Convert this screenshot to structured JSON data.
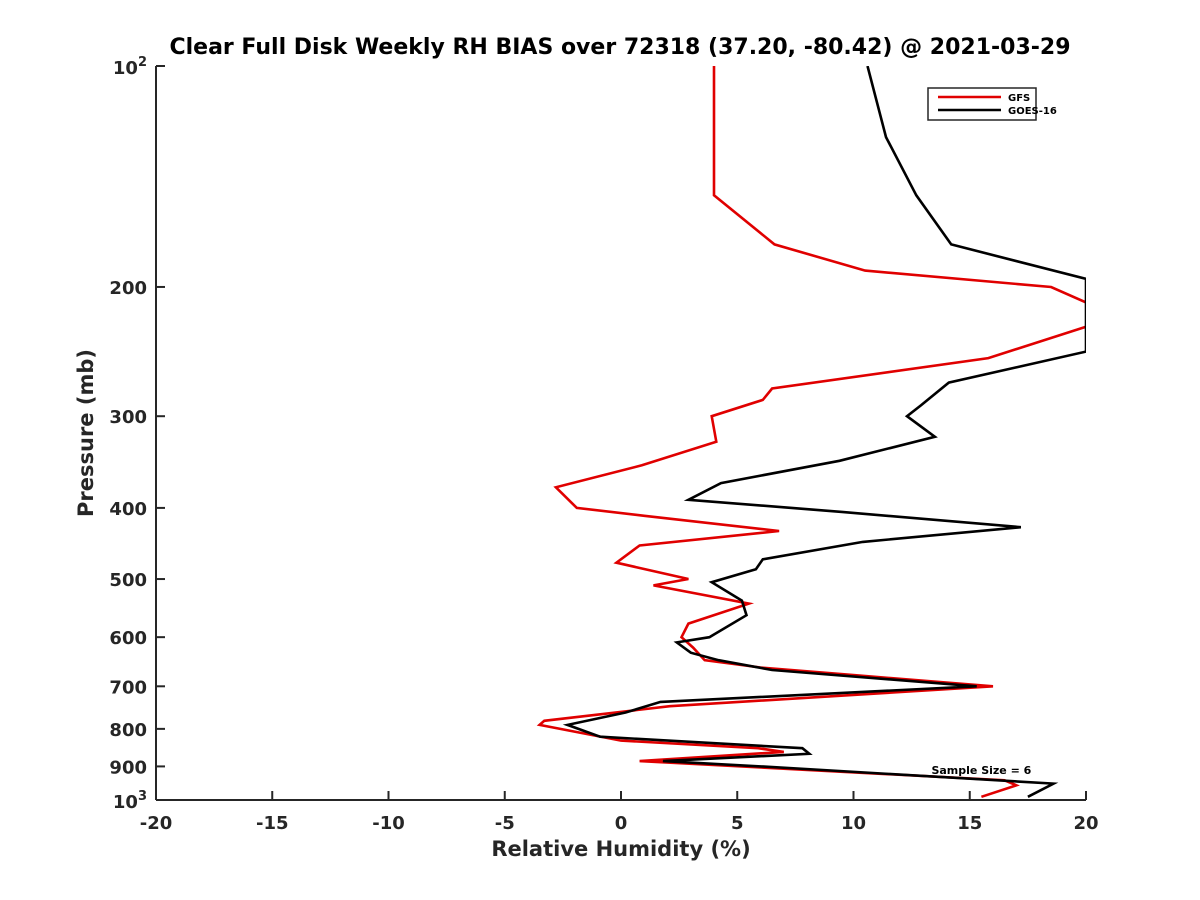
{
  "chart_data": {
    "type": "line",
    "title": "Clear Full Disk Weekly RH BIAS over 72318 (37.20, -80.42) @ 2021-03-29",
    "xlabel": "Relative Humidity (%)",
    "ylabel": "Pressure (mb)",
    "xlim": [
      -20,
      20
    ],
    "ylim": [
      100,
      1000
    ],
    "yscale": "log",
    "y_reversed": true,
    "grid": false,
    "legend_position": "top-right",
    "x_ticks": [
      -20,
      -15,
      -10,
      -5,
      0,
      5,
      10,
      15,
      20
    ],
    "y_ticks": [
      {
        "value": 100,
        "base": "10",
        "exp": "2"
      },
      {
        "value": 200,
        "label": "200"
      },
      {
        "value": 300,
        "label": "300"
      },
      {
        "value": 400,
        "label": "400"
      },
      {
        "value": 500,
        "label": "500"
      },
      {
        "value": 600,
        "label": "600"
      },
      {
        "value": 700,
        "label": "700"
      },
      {
        "value": 800,
        "label": "800"
      },
      {
        "value": 900,
        "label": "900"
      },
      {
        "value": 1000,
        "base": "10",
        "exp": "3"
      }
    ],
    "series": [
      {
        "name": "GFS",
        "color": "#e00000",
        "points": [
          [
            4.0,
            100
          ],
          [
            4.0,
            125
          ],
          [
            4.0,
            150
          ],
          [
            6.6,
            175
          ],
          [
            10.5,
            190
          ],
          [
            18.5,
            200
          ],
          [
            20.3,
            212
          ],
          [
            20.3,
            225
          ],
          [
            15.8,
            250
          ],
          [
            6.5,
            275
          ],
          [
            6.1,
            285
          ],
          [
            3.9,
            300
          ],
          [
            4.1,
            325
          ],
          [
            0.9,
            350
          ],
          [
            -2.8,
            375
          ],
          [
            -1.9,
            400
          ],
          [
            1.0,
            410
          ],
          [
            6.8,
            430
          ],
          [
            0.8,
            450
          ],
          [
            -0.2,
            475
          ],
          [
            2.9,
            500
          ],
          [
            1.4,
            510
          ],
          [
            5.5,
            540
          ],
          [
            2.9,
            575
          ],
          [
            2.6,
            600
          ],
          [
            3.1,
            620
          ],
          [
            3.6,
            645
          ],
          [
            6.0,
            660
          ],
          [
            9.8,
            675
          ],
          [
            16.0,
            700
          ],
          [
            2.1,
            745
          ],
          [
            -3.3,
            780
          ],
          [
            -3.5,
            790
          ],
          [
            0.0,
            830
          ],
          [
            5.9,
            850
          ],
          [
            7.0,
            860
          ],
          [
            0.8,
            885
          ],
          [
            16.5,
            940
          ],
          [
            17.0,
            955
          ],
          [
            15.5,
            990
          ]
        ]
      },
      {
        "name": "GOES-16",
        "color": "#000000",
        "points": [
          [
            10.6,
            100
          ],
          [
            11.4,
            125
          ],
          [
            12.7,
            150
          ],
          [
            14.2,
            175
          ],
          [
            20.0,
            195
          ],
          [
            20.0,
            245
          ],
          [
            14.1,
            270
          ],
          [
            12.9,
            290
          ],
          [
            12.3,
            300
          ],
          [
            13.5,
            320
          ],
          [
            9.4,
            345
          ],
          [
            4.3,
            370
          ],
          [
            2.9,
            390
          ],
          [
            9.5,
            405
          ],
          [
            17.2,
            425
          ],
          [
            10.4,
            445
          ],
          [
            6.1,
            470
          ],
          [
            5.8,
            485
          ],
          [
            3.9,
            505
          ],
          [
            5.2,
            535
          ],
          [
            5.4,
            560
          ],
          [
            3.8,
            600
          ],
          [
            2.4,
            610
          ],
          [
            3.0,
            630
          ],
          [
            4.2,
            645
          ],
          [
            6.5,
            665
          ],
          [
            15.3,
            700
          ],
          [
            1.7,
            735
          ],
          [
            0.2,
            760
          ],
          [
            -2.3,
            790
          ],
          [
            -0.9,
            820
          ],
          [
            7.8,
            850
          ],
          [
            8.1,
            865
          ],
          [
            1.8,
            885
          ],
          [
            6.0,
            900
          ],
          [
            18.6,
            950
          ],
          [
            17.5,
            990
          ]
        ]
      }
    ],
    "annotations": [
      {
        "text": "Sample Size = 6",
        "x": 15.5,
        "y": 910
      }
    ]
  }
}
